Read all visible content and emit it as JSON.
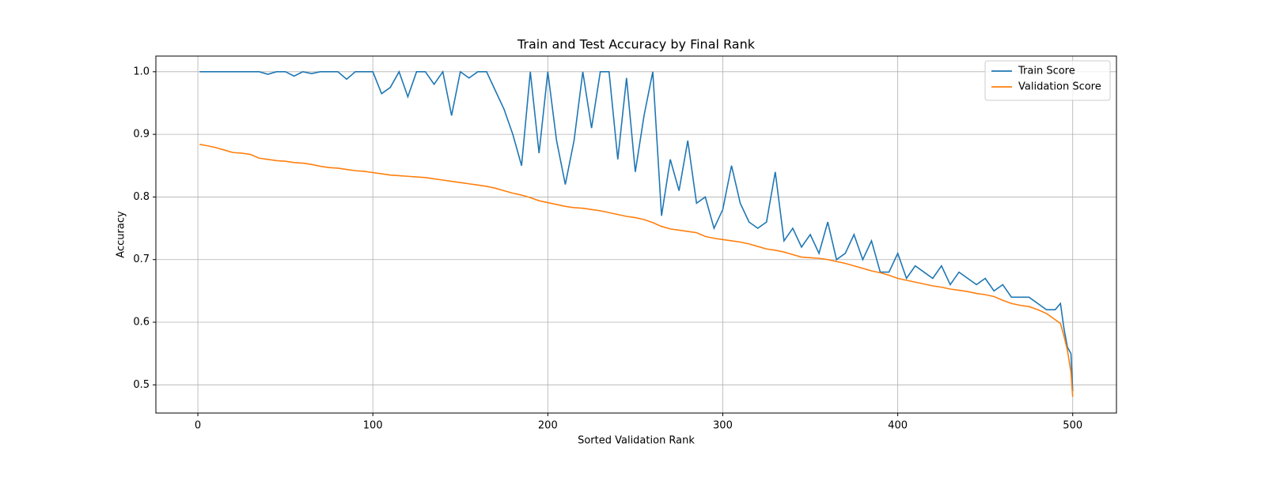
{
  "chart_data": {
    "type": "line",
    "title": "Train and Test Accuracy by Final Rank",
    "x_label": "Sorted Validation Rank",
    "y_label": "Accuracy",
    "x": [
      1,
      5,
      10,
      15,
      20,
      25,
      30,
      35,
      40,
      45,
      50,
      55,
      60,
      65,
      70,
      75,
      80,
      85,
      90,
      95,
      100,
      105,
      110,
      115,
      120,
      125,
      130,
      135,
      140,
      145,
      150,
      155,
      160,
      165,
      170,
      175,
      180,
      185,
      190,
      195,
      200,
      205,
      210,
      215,
      220,
      225,
      230,
      235,
      240,
      245,
      250,
      255,
      260,
      265,
      270,
      275,
      280,
      285,
      290,
      295,
      300,
      305,
      310,
      315,
      320,
      325,
      330,
      335,
      340,
      345,
      350,
      355,
      360,
      365,
      370,
      375,
      380,
      385,
      390,
      395,
      400,
      405,
      410,
      415,
      420,
      425,
      430,
      435,
      440,
      445,
      450,
      455,
      460,
      465,
      470,
      475,
      480,
      485,
      490,
      493,
      495,
      497,
      499,
      500
    ],
    "series": [
      {
        "name": "Train Score",
        "color": "#1f77b4",
        "values": [
          1.0,
          1.0,
          1.0,
          1.0,
          1.0,
          1.0,
          1.0,
          1.0,
          0.996,
          1.0,
          1.0,
          0.993,
          1.0,
          0.997,
          1.0,
          1.0,
          1.0,
          0.988,
          1.0,
          1.0,
          1.0,
          0.965,
          0.975,
          1.0,
          0.96,
          1.0,
          1.0,
          0.98,
          1.0,
          0.93,
          1.0,
          0.99,
          1.0,
          1.0,
          0.97,
          0.94,
          0.9,
          0.85,
          1.0,
          0.87,
          1.0,
          0.89,
          0.82,
          0.89,
          1.0,
          0.91,
          1.0,
          1.0,
          0.86,
          0.99,
          0.84,
          0.93,
          1.0,
          0.77,
          0.86,
          0.81,
          0.89,
          0.79,
          0.8,
          0.75,
          0.78,
          0.85,
          0.79,
          0.76,
          0.75,
          0.76,
          0.84,
          0.73,
          0.75,
          0.72,
          0.74,
          0.71,
          0.76,
          0.7,
          0.71,
          0.74,
          0.7,
          0.73,
          0.68,
          0.68,
          0.71,
          0.67,
          0.69,
          0.68,
          0.67,
          0.69,
          0.66,
          0.68,
          0.67,
          0.66,
          0.67,
          0.65,
          0.66,
          0.64,
          0.64,
          0.64,
          0.63,
          0.62,
          0.62,
          0.63,
          0.59,
          0.56,
          0.55,
          0.49
        ]
      },
      {
        "name": "Validation Score",
        "color": "#ff7f0e",
        "values": [
          0.884,
          0.882,
          0.879,
          0.875,
          0.871,
          0.87,
          0.868,
          0.862,
          0.86,
          0.858,
          0.857,
          0.855,
          0.854,
          0.852,
          0.849,
          0.847,
          0.846,
          0.844,
          0.842,
          0.841,
          0.839,
          0.837,
          0.835,
          0.834,
          0.833,
          0.832,
          0.831,
          0.829,
          0.827,
          0.825,
          0.823,
          0.821,
          0.819,
          0.817,
          0.814,
          0.81,
          0.806,
          0.803,
          0.799,
          0.794,
          0.791,
          0.788,
          0.785,
          0.783,
          0.782,
          0.78,
          0.778,
          0.775,
          0.772,
          0.769,
          0.767,
          0.764,
          0.759,
          0.753,
          0.749,
          0.747,
          0.745,
          0.743,
          0.737,
          0.734,
          0.732,
          0.73,
          0.728,
          0.725,
          0.721,
          0.717,
          0.715,
          0.712,
          0.708,
          0.704,
          0.703,
          0.702,
          0.7,
          0.697,
          0.694,
          0.69,
          0.686,
          0.682,
          0.679,
          0.675,
          0.67,
          0.667,
          0.664,
          0.661,
          0.658,
          0.656,
          0.653,
          0.651,
          0.649,
          0.646,
          0.644,
          0.641,
          0.635,
          0.63,
          0.627,
          0.625,
          0.62,
          0.614,
          0.604,
          0.598,
          0.578,
          0.555,
          0.52,
          0.481
        ]
      }
    ],
    "xlim": [
      -24,
      525
    ],
    "ylim": [
      0.455,
      1.025
    ],
    "xticks": [
      0,
      100,
      200,
      300,
      400,
      500
    ],
    "yticks": [
      0.5,
      0.6,
      0.7,
      0.8,
      0.9,
      {
        "value": 1.0,
        "label": "1.0"
      }
    ],
    "grid": true,
    "legend": "upper right"
  }
}
